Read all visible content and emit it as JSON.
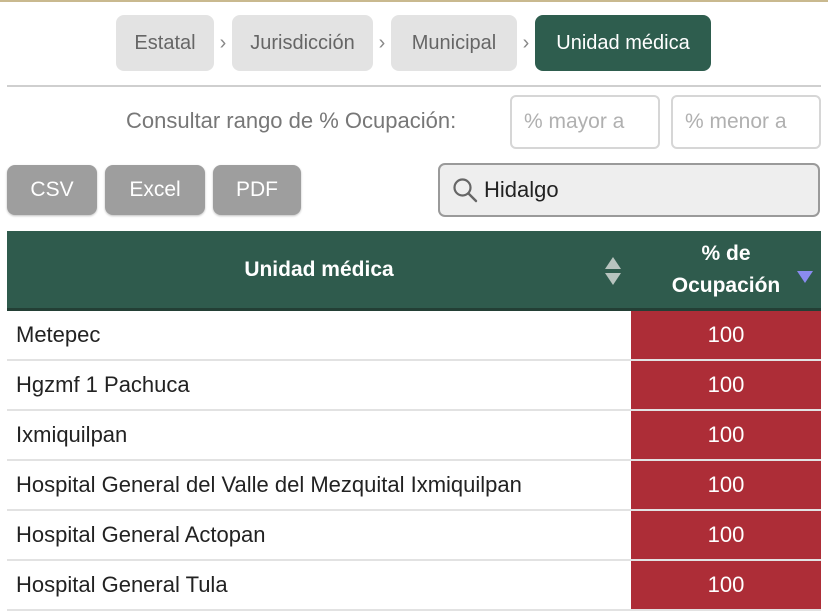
{
  "breadcrumb": {
    "items": [
      {
        "label": "Estatal"
      },
      {
        "label": "Jurisdicción"
      },
      {
        "label": "Municipal"
      },
      {
        "label": "Unidad médica"
      }
    ],
    "separator": "›"
  },
  "range_filter": {
    "label": "Consultar rango de % Ocupación:",
    "min_placeholder": "% mayor a",
    "max_placeholder": "% menor a"
  },
  "export": {
    "csv_label": "CSV",
    "excel_label": "Excel",
    "pdf_label": "PDF"
  },
  "search": {
    "value": "Hidalgo",
    "icon": "search-icon"
  },
  "table": {
    "headers": {
      "name": "Unidad médica",
      "occupancy_line1": "% de",
      "occupancy_line2": "Ocupación"
    },
    "sort": {
      "column": "occupancy",
      "direction": "descending"
    },
    "rows": [
      {
        "name": "Metepec",
        "occupancy": "100"
      },
      {
        "name": "Hgzmf 1 Pachuca",
        "occupancy": "100"
      },
      {
        "name": "Ixmiquilpan",
        "occupancy": "100"
      },
      {
        "name": "Hospital General del Valle del Mezquital Ixmiquilpan",
        "occupancy": "100"
      },
      {
        "name": "Hospital General Actopan",
        "occupancy": "100"
      },
      {
        "name": "Hospital General Tula",
        "occupancy": "100"
      }
    ]
  },
  "colors": {
    "header_green": "#2f5b4d",
    "active_crumb": "#2e5d4e",
    "occupancy_red": "#ad2d37",
    "button_gray": "#9e9e9e"
  }
}
